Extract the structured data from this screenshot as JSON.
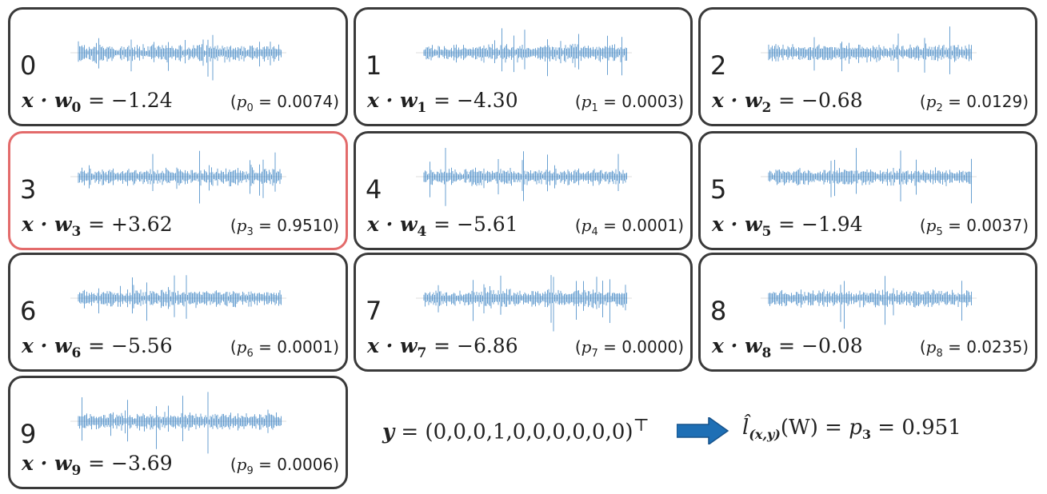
{
  "panels": [
    {
      "id": "0",
      "symbol": "x · w",
      "sub": "0",
      "dot": "= −1.24",
      "plabel": "p",
      "psub": "0",
      "pval": "= 0.0074)",
      "highlight": false
    },
    {
      "id": "1",
      "symbol": "x · w",
      "sub": "1",
      "dot": "= −4.30",
      "plabel": "p",
      "psub": "1",
      "pval": "= 0.0003)",
      "highlight": false
    },
    {
      "id": "2",
      "symbol": "x · w",
      "sub": "2",
      "dot": "= −0.68",
      "plabel": "p",
      "psub": "2",
      "pval": "= 0.0129)",
      "highlight": false
    },
    {
      "id": "3",
      "symbol": "x · w",
      "sub": "3",
      "dot": "= +3.62",
      "plabel": "p",
      "psub": "3",
      "pval": "= 0.9510)",
      "highlight": true
    },
    {
      "id": "4",
      "symbol": "x · w",
      "sub": "4",
      "dot": "= −5.61",
      "plabel": "p",
      "psub": "4",
      "pval": "= 0.0001)",
      "highlight": false
    },
    {
      "id": "5",
      "symbol": "x · w",
      "sub": "5",
      "dot": "= −1.94",
      "plabel": "p",
      "psub": "5",
      "pval": "= 0.0037)",
      "highlight": false
    },
    {
      "id": "6",
      "symbol": "x · w",
      "sub": "6",
      "dot": "= −5.56",
      "plabel": "p",
      "psub": "6",
      "pval": "= 0.0001)",
      "highlight": false
    },
    {
      "id": "7",
      "symbol": "x · w",
      "sub": "7",
      "dot": "= −6.86",
      "plabel": "p",
      "psub": "7",
      "pval": "= 0.0000)",
      "highlight": false
    },
    {
      "id": "8",
      "symbol": "x · w",
      "sub": "8",
      "dot": "= −0.08",
      "plabel": "p",
      "psub": "8",
      "pval": "= 0.0235)",
      "highlight": false
    },
    {
      "id": "9",
      "symbol": "x · w",
      "sub": "9",
      "dot": "= −3.69",
      "plabel": "p",
      "psub": "9",
      "pval": "= 0.0006)",
      "highlight": false
    }
  ],
  "target": {
    "lhs": "y",
    "eq": "= (0,0,0,1,0,0,0,0,0,0)",
    "sup": "⊤"
  },
  "loss": {
    "hat": "l̂",
    "sub": "(x,y)",
    "arg": "(W) = ",
    "p": "p",
    "psub": "3",
    "val": " = 0.951"
  },
  "colors": {
    "border": "#3a3a3a",
    "highlight": "#e36b6b",
    "wave": "#2e7bbf",
    "arrow": "#1e6fb5"
  },
  "icons": {
    "arrow": "right-arrow-icon"
  }
}
